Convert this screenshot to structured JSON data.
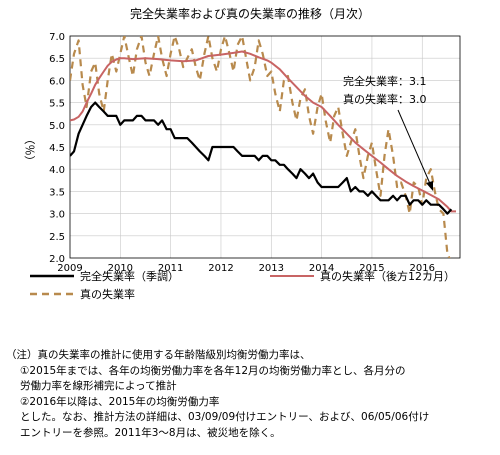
{
  "chart_data": {
    "type": "line",
    "title": "完全失業率および真の失業率の推移（月次）",
    "ylabel": "（％）",
    "xlim": [
      2009.0,
      2016.75
    ],
    "ylim": [
      2.0,
      7.0
    ],
    "y_ticks": [
      "2.0",
      "2.5",
      "3.0",
      "3.5",
      "4.0",
      "4.5",
      "5.0",
      "5.5",
      "6.0",
      "6.5",
      "7.0"
    ],
    "x_ticks": [
      "2009",
      "2010",
      "2011",
      "2012",
      "2013",
      "2014",
      "2015",
      "2016"
    ],
    "grid": true,
    "legend_position": "bottom",
    "annotations": [
      {
        "text": "完全失業率：3.1",
        "x": 2016.6,
        "y": 3.5
      },
      {
        "text": "真の失業率：3.0",
        "x": 2016.6,
        "y": 3.5
      }
    ],
    "series": [
      {
        "name": "完全失業率（季調）",
        "color": "#000000",
        "style": "solid",
        "points": [
          [
            2009.0,
            4.3
          ],
          [
            2009.08,
            4.4
          ],
          [
            2009.17,
            4.8
          ],
          [
            2009.25,
            5.0
          ],
          [
            2009.33,
            5.2
          ],
          [
            2009.42,
            5.4
          ],
          [
            2009.5,
            5.5
          ],
          [
            2009.58,
            5.4
          ],
          [
            2009.67,
            5.3
          ],
          [
            2009.75,
            5.2
          ],
          [
            2009.83,
            5.2
          ],
          [
            2009.92,
            5.2
          ],
          [
            2010.0,
            5.0
          ],
          [
            2010.08,
            5.1
          ],
          [
            2010.17,
            5.1
          ],
          [
            2010.25,
            5.1
          ],
          [
            2010.33,
            5.2
          ],
          [
            2010.42,
            5.2
          ],
          [
            2010.5,
            5.1
          ],
          [
            2010.58,
            5.1
          ],
          [
            2010.67,
            5.1
          ],
          [
            2010.75,
            5.0
          ],
          [
            2010.83,
            5.1
          ],
          [
            2010.92,
            4.9
          ],
          [
            2011.0,
            4.9
          ],
          [
            2011.08,
            4.7
          ],
          [
            2011.17,
            4.7
          ],
          [
            2011.25,
            4.7
          ],
          [
            2011.33,
            4.7
          ],
          [
            2011.42,
            4.6
          ],
          [
            2011.5,
            4.5
          ],
          [
            2011.58,
            4.4
          ],
          [
            2011.67,
            4.3
          ],
          [
            2011.75,
            4.2
          ],
          [
            2011.83,
            4.5
          ],
          [
            2011.92,
            4.5
          ],
          [
            2012.0,
            4.5
          ],
          [
            2012.08,
            4.5
          ],
          [
            2012.17,
            4.5
          ],
          [
            2012.25,
            4.5
          ],
          [
            2012.33,
            4.4
          ],
          [
            2012.42,
            4.3
          ],
          [
            2012.5,
            4.3
          ],
          [
            2012.58,
            4.3
          ],
          [
            2012.67,
            4.3
          ],
          [
            2012.75,
            4.2
          ],
          [
            2012.83,
            4.3
          ],
          [
            2012.92,
            4.3
          ],
          [
            2013.0,
            4.2
          ],
          [
            2013.08,
            4.2
          ],
          [
            2013.17,
            4.1
          ],
          [
            2013.25,
            4.1
          ],
          [
            2013.33,
            4.0
          ],
          [
            2013.42,
            3.9
          ],
          [
            2013.5,
            3.8
          ],
          [
            2013.58,
            4.0
          ],
          [
            2013.67,
            3.9
          ],
          [
            2013.75,
            3.8
          ],
          [
            2013.83,
            3.9
          ],
          [
            2013.92,
            3.7
          ],
          [
            2014.0,
            3.6
          ],
          [
            2014.08,
            3.6
          ],
          [
            2014.17,
            3.6
          ],
          [
            2014.25,
            3.6
          ],
          [
            2014.33,
            3.6
          ],
          [
            2014.42,
            3.7
          ],
          [
            2014.5,
            3.8
          ],
          [
            2014.58,
            3.5
          ],
          [
            2014.67,
            3.6
          ],
          [
            2014.75,
            3.5
          ],
          [
            2014.83,
            3.5
          ],
          [
            2014.92,
            3.4
          ],
          [
            2015.0,
            3.5
          ],
          [
            2015.08,
            3.4
          ],
          [
            2015.17,
            3.3
          ],
          [
            2015.25,
            3.3
          ],
          [
            2015.33,
            3.3
          ],
          [
            2015.42,
            3.4
          ],
          [
            2015.5,
            3.3
          ],
          [
            2015.58,
            3.4
          ],
          [
            2015.67,
            3.4
          ],
          [
            2015.75,
            3.2
          ],
          [
            2015.83,
            3.3
          ],
          [
            2015.92,
            3.3
          ],
          [
            2016.0,
            3.2
          ],
          [
            2016.08,
            3.3
          ],
          [
            2016.17,
            3.2
          ],
          [
            2016.25,
            3.2
          ],
          [
            2016.33,
            3.2
          ],
          [
            2016.42,
            3.1
          ],
          [
            2016.5,
            3.0
          ],
          [
            2016.58,
            3.1
          ]
        ]
      },
      {
        "name": "真の失業率（後方12カ月）",
        "color": "#c86464",
        "style": "solid",
        "points": [
          [
            2009.0,
            5.1
          ],
          [
            2009.08,
            5.12
          ],
          [
            2009.17,
            5.18
          ],
          [
            2009.25,
            5.3
          ],
          [
            2009.33,
            5.5
          ],
          [
            2009.42,
            5.7
          ],
          [
            2009.5,
            5.9
          ],
          [
            2009.58,
            6.05
          ],
          [
            2009.67,
            6.2
          ],
          [
            2009.75,
            6.33
          ],
          [
            2009.83,
            6.42
          ],
          [
            2009.92,
            6.47
          ],
          [
            2010.0,
            6.5
          ],
          [
            2010.08,
            6.5
          ],
          [
            2010.25,
            6.48
          ],
          [
            2010.5,
            6.5
          ],
          [
            2010.75,
            6.48
          ],
          [
            2011.0,
            6.45
          ],
          [
            2011.25,
            6.43
          ],
          [
            2011.5,
            6.45
          ],
          [
            2011.75,
            6.55
          ],
          [
            2012.0,
            6.58
          ],
          [
            2012.25,
            6.62
          ],
          [
            2012.42,
            6.65
          ],
          [
            2012.58,
            6.6
          ],
          [
            2012.75,
            6.52
          ],
          [
            2012.92,
            6.45
          ],
          [
            2013.0,
            6.4
          ],
          [
            2013.17,
            6.25
          ],
          [
            2013.33,
            6.05
          ],
          [
            2013.5,
            5.85
          ],
          [
            2013.67,
            5.65
          ],
          [
            2013.83,
            5.5
          ],
          [
            2014.0,
            5.4
          ],
          [
            2014.17,
            5.2
          ],
          [
            2014.33,
            5.0
          ],
          [
            2014.5,
            4.8
          ],
          [
            2014.67,
            4.6
          ],
          [
            2014.83,
            4.45
          ],
          [
            2015.0,
            4.3
          ],
          [
            2015.17,
            4.15
          ],
          [
            2015.33,
            4.0
          ],
          [
            2015.5,
            3.85
          ],
          [
            2015.67,
            3.72
          ],
          [
            2015.83,
            3.62
          ],
          [
            2016.0,
            3.52
          ],
          [
            2016.17,
            3.42
          ],
          [
            2016.33,
            3.32
          ],
          [
            2016.5,
            3.15
          ],
          [
            2016.58,
            3.05
          ],
          [
            2016.67,
            3.05
          ]
        ]
      },
      {
        "name": "真の失業率",
        "color": "#b88a4d",
        "style": "dashed",
        "points": [
          [
            2009.0,
            6.0
          ],
          [
            2009.08,
            6.6
          ],
          [
            2009.17,
            6.9
          ],
          [
            2009.25,
            5.9
          ],
          [
            2009.33,
            5.4
          ],
          [
            2009.42,
            6.2
          ],
          [
            2009.5,
            6.4
          ],
          [
            2009.58,
            5.7
          ],
          [
            2009.67,
            5.3
          ],
          [
            2009.75,
            6.0
          ],
          [
            2009.83,
            6.6
          ],
          [
            2009.92,
            6.2
          ],
          [
            2010.0,
            6.6
          ],
          [
            2010.08,
            7.0
          ],
          [
            2010.17,
            6.5
          ],
          [
            2010.25,
            6.1
          ],
          [
            2010.33,
            6.7
          ],
          [
            2010.42,
            7.0
          ],
          [
            2010.5,
            6.4
          ],
          [
            2010.58,
            6.1
          ],
          [
            2010.67,
            6.6
          ],
          [
            2010.75,
            7.0
          ],
          [
            2010.83,
            6.5
          ],
          [
            2010.92,
            6.1
          ],
          [
            2011.0,
            6.6
          ],
          [
            2011.08,
            7.0
          ],
          [
            2011.17,
            6.7
          ],
          [
            2011.25,
            6.3
          ],
          [
            2011.33,
            6.5
          ],
          [
            2011.42,
            6.7
          ],
          [
            2011.5,
            6.3
          ],
          [
            2011.58,
            6.0
          ],
          [
            2011.67,
            6.6
          ],
          [
            2011.75,
            7.0
          ],
          [
            2011.83,
            6.5
          ],
          [
            2011.92,
            6.2
          ],
          [
            2012.0,
            6.7
          ],
          [
            2012.08,
            7.0
          ],
          [
            2012.17,
            6.6
          ],
          [
            2012.25,
            6.2
          ],
          [
            2012.33,
            6.8
          ],
          [
            2012.42,
            7.0
          ],
          [
            2012.5,
            6.5
          ],
          [
            2012.58,
            6.0
          ],
          [
            2012.67,
            6.3
          ],
          [
            2012.75,
            6.9
          ],
          [
            2012.83,
            6.6
          ],
          [
            2012.92,
            6.1
          ],
          [
            2013.0,
            6.2
          ],
          [
            2013.08,
            5.7
          ],
          [
            2013.17,
            5.3
          ],
          [
            2013.25,
            6.0
          ],
          [
            2013.33,
            6.1
          ],
          [
            2013.42,
            5.5
          ],
          [
            2013.5,
            5.1
          ],
          [
            2013.58,
            5.6
          ],
          [
            2013.67,
            5.8
          ],
          [
            2013.75,
            5.2
          ],
          [
            2013.83,
            4.8
          ],
          [
            2013.92,
            5.4
          ],
          [
            2014.0,
            5.7
          ],
          [
            2014.08,
            5.1
          ],
          [
            2014.17,
            4.6
          ],
          [
            2014.25,
            5.2
          ],
          [
            2014.33,
            5.4
          ],
          [
            2014.42,
            4.8
          ],
          [
            2014.5,
            4.3
          ],
          [
            2014.58,
            4.6
          ],
          [
            2014.67,
            4.9
          ],
          [
            2014.75,
            4.3
          ],
          [
            2014.83,
            3.8
          ],
          [
            2014.92,
            4.3
          ],
          [
            2015.0,
            4.6
          ],
          [
            2015.08,
            4.0
          ],
          [
            2015.17,
            3.4
          ],
          [
            2015.25,
            4.3
          ],
          [
            2015.33,
            4.9
          ],
          [
            2015.42,
            4.3
          ],
          [
            2015.5,
            3.6
          ],
          [
            2015.58,
            3.7
          ],
          [
            2015.67,
            3.4
          ],
          [
            2015.75,
            3.0
          ],
          [
            2015.83,
            3.7
          ],
          [
            2015.92,
            3.6
          ],
          [
            2016.0,
            3.2
          ],
          [
            2016.08,
            3.8
          ],
          [
            2016.17,
            4.0
          ],
          [
            2016.25,
            3.5
          ],
          [
            2016.33,
            3.1
          ],
          [
            2016.42,
            3.0
          ],
          [
            2016.5,
            2.1
          ],
          [
            2016.58,
            1.9
          ]
        ]
      }
    ]
  },
  "notes": {
    "head": "（注）真の失業率の推計に使用する年齢階級別均衡労働力率は、",
    "item1_line1": "①2015年までは、各年の均衡労働力率を各年12月の均衡労働力率とし、各月分の",
    "item1_line2": "労働力率を線形補完によって推計",
    "item2_line1": "②2016年以降は、2015年の均衡労働力率",
    "item2_line2": "とした。なお、推計方法の詳細は、03/09/09付けエントリー、および、06/05/06付け",
    "item2_line3": "エントリーを参照。2011年3～8月は、被災地を除く。"
  }
}
